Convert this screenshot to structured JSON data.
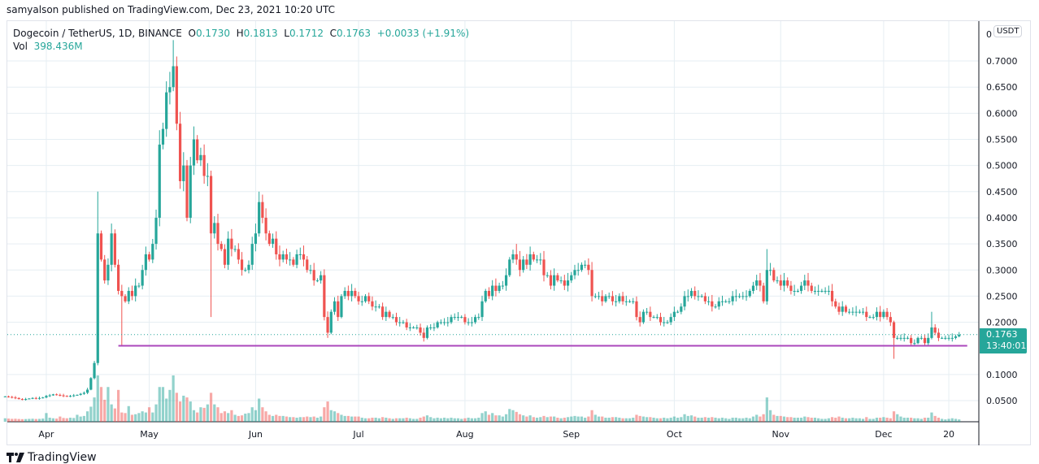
{
  "publish_line": "samyalson published on TradingView.com, Dec 23, 2021 10:20 UTC",
  "legend": {
    "symbol": "Dogecoin / TetherUS, 1D, BINANCE",
    "o_label": "O",
    "o": "0.1730",
    "h_label": "H",
    "h": "0.1813",
    "l_label": "L",
    "l": "0.1712",
    "c_label": "C",
    "c": "0.1763",
    "change": "+0.0033 (+1.91%)",
    "vol_label": "Vol",
    "vol": "398.436M"
  },
  "price_axis": {
    "currency": "USDT",
    "top_label": "0",
    "ticks": [
      "0.7000",
      "0.6500",
      "0.6000",
      "0.5500",
      "0.5000",
      "0.4500",
      "0.4000",
      "0.3500",
      "0.3000",
      "0.2500",
      "0.2000",
      "0.1000",
      "0.0500"
    ],
    "last_price": "0.1763",
    "countdown": "13:40:01"
  },
  "time_axis": {
    "ticks": [
      "Apr",
      "May",
      "Jun",
      "Jul",
      "Aug",
      "Sep",
      "Oct",
      "Nov",
      "Dec",
      "20"
    ]
  },
  "footer": {
    "brand": "TradingView"
  },
  "colors": {
    "up": "#26a69a",
    "down": "#ef5350",
    "support_line": "#ab47bc",
    "grid": "#e6eef3"
  },
  "chart_data": {
    "type": "candlestick",
    "symbol": "DOGE/USDT",
    "interval": "1D",
    "date_range": [
      "2021-03-20",
      "2021-12-23"
    ],
    "ylim": [
      0,
      0.75
    ],
    "grid": true,
    "closes": [
      0.058,
      0.057,
      0.056,
      0.055,
      0.053,
      0.052,
      0.053,
      0.054,
      0.055,
      0.054,
      0.055,
      0.056,
      0.059,
      0.06,
      0.062,
      0.061,
      0.06,
      0.059,
      0.058,
      0.059,
      0.06,
      0.061,
      0.063,
      0.065,
      0.071,
      0.093,
      0.122,
      0.37,
      0.32,
      0.28,
      0.31,
      0.37,
      0.31,
      0.26,
      0.25,
      0.24,
      0.26,
      0.25,
      0.27,
      0.27,
      0.3,
      0.33,
      0.32,
      0.35,
      0.4,
      0.54,
      0.57,
      0.64,
      0.65,
      0.69,
      0.58,
      0.47,
      0.5,
      0.4,
      0.5,
      0.55,
      0.51,
      0.52,
      0.48,
      0.48,
      0.37,
      0.39,
      0.35,
      0.34,
      0.31,
      0.36,
      0.34,
      0.34,
      0.32,
      0.3,
      0.3,
      0.31,
      0.35,
      0.37,
      0.43,
      0.4,
      0.37,
      0.35,
      0.36,
      0.33,
      0.32,
      0.33,
      0.32,
      0.32,
      0.31,
      0.33,
      0.33,
      0.32,
      0.3,
      0.3,
      0.28,
      0.28,
      0.29,
      0.21,
      0.18,
      0.22,
      0.24,
      0.21,
      0.25,
      0.26,
      0.25,
      0.26,
      0.25,
      0.24,
      0.24,
      0.25,
      0.24,
      0.23,
      0.23,
      0.23,
      0.21,
      0.22,
      0.21,
      0.21,
      0.2,
      0.2,
      0.2,
      0.19,
      0.19,
      0.19,
      0.19,
      0.18,
      0.17,
      0.19,
      0.19,
      0.19,
      0.2,
      0.2,
      0.2,
      0.2,
      0.21,
      0.21,
      0.21,
      0.21,
      0.2,
      0.2,
      0.2,
      0.21,
      0.21,
      0.24,
      0.26,
      0.25,
      0.27,
      0.26,
      0.27,
      0.27,
      0.29,
      0.32,
      0.33,
      0.32,
      0.3,
      0.32,
      0.31,
      0.33,
      0.32,
      0.32,
      0.32,
      0.29,
      0.29,
      0.27,
      0.29,
      0.28,
      0.28,
      0.27,
      0.28,
      0.29,
      0.3,
      0.3,
      0.31,
      0.31,
      0.3,
      0.25,
      0.25,
      0.25,
      0.24,
      0.25,
      0.25,
      0.24,
      0.24,
      0.25,
      0.24,
      0.24,
      0.24,
      0.24,
      0.21,
      0.2,
      0.22,
      0.22,
      0.21,
      0.21,
      0.21,
      0.2,
      0.2,
      0.2,
      0.21,
      0.22,
      0.22,
      0.23,
      0.25,
      0.25,
      0.26,
      0.25,
      0.25,
      0.25,
      0.24,
      0.24,
      0.23,
      0.23,
      0.24,
      0.24,
      0.24,
      0.24,
      0.25,
      0.25,
      0.25,
      0.25,
      0.25,
      0.26,
      0.27,
      0.28,
      0.27,
      0.24,
      0.3,
      0.3,
      0.28,
      0.28,
      0.27,
      0.28,
      0.27,
      0.26,
      0.26,
      0.26,
      0.27,
      0.28,
      0.27,
      0.26,
      0.26,
      0.26,
      0.26,
      0.26,
      0.26,
      0.24,
      0.23,
      0.22,
      0.23,
      0.22,
      0.22,
      0.22,
      0.22,
      0.22,
      0.22,
      0.21,
      0.21,
      0.21,
      0.22,
      0.21,
      0.22,
      0.21,
      0.2,
      0.17,
      0.17,
      0.17,
      0.17,
      0.17,
      0.16,
      0.16,
      0.17,
      0.17,
      0.16,
      0.17,
      0.19,
      0.18,
      0.17,
      0.17,
      0.17,
      0.17,
      0.17,
      0.173,
      0.1763
    ],
    "highs": {
      "2021-04-16": 0.45,
      "2021-05-08": 0.74,
      "2021-06-02": 0.45,
      "2021-08-16": 0.35,
      "2021-10-28": 0.34,
      "2021-12-15": 0.22,
      "2021-12-23": 0.1813
    },
    "lows": {
      "2021-04-23": 0.155,
      "2021-05-19": 0.21,
      "2021-06-22": 0.17,
      "2021-12-04": 0.13,
      "2021-12-23": 0.1712
    },
    "volumes_m": [
      600,
      550,
      500,
      520,
      480,
      450,
      470,
      500,
      520,
      480,
      500,
      550,
      1500,
      700,
      600,
      550,
      900,
      650,
      600,
      700,
      650,
      1200,
      900,
      1000,
      1800,
      2600,
      4200,
      8000,
      6000,
      3800,
      6000,
      3000,
      2300,
      5500,
      1600,
      1500,
      2700,
      1200,
      1300,
      1500,
      1800,
      1600,
      2500,
      1600,
      3000,
      6000,
      6000,
      4000,
      5500,
      8000,
      5000,
      3500,
      4500,
      4200,
      3500,
      2000,
      1600,
      2500,
      2400,
      3000,
      5000,
      3000,
      2500,
      1500,
      1800,
      1500,
      2000,
      1200,
      1000,
      1100,
      1400,
      1500,
      2500,
      2000,
      4000,
      2500,
      1800,
      1200,
      1000,
      1200,
      1000,
      1000,
      900,
      800,
      800,
      700,
      800,
      800,
      900,
      800,
      900,
      700,
      900,
      2500,
      3500,
      2000,
      1800,
      1500,
      1200,
      1000,
      1000,
      900,
      900,
      900,
      700,
      600,
      600,
      700,
      700,
      600,
      800,
      700,
      600,
      500,
      600,
      600,
      600,
      700,
      600,
      500,
      500,
      700,
      900,
      1100,
      800,
      600,
      700,
      600,
      700,
      600,
      700,
      600,
      600,
      500,
      600,
      700,
      600,
      600,
      700,
      1500,
      1800,
      1200,
      1500,
      1100,
      1100,
      900,
      1300,
      2200,
      2000,
      1700,
      1300,
      1100,
      900,
      1100,
      800,
      700,
      800,
      1000,
      800,
      900,
      900,
      700,
      600,
      700,
      800,
      900,
      1000,
      900,
      900,
      700,
      900,
      2000,
      1200,
      900,
      900,
      700,
      700,
      800,
      800,
      700,
      600,
      600,
      600,
      700,
      1200,
      1000,
      900,
      800,
      800,
      700,
      600,
      600,
      700,
      600,
      700,
      900,
      700,
      800,
      1300,
      1000,
      1100,
      900,
      700,
      700,
      800,
      700,
      800,
      700,
      600,
      700,
      600,
      500,
      700,
      700,
      600,
      600,
      700,
      600,
      900,
      1200,
      900,
      1300,
      4200,
      2000,
      1200,
      1000,
      1000,
      900,
      800,
      800,
      700,
      700,
      700,
      900,
      800,
      700,
      700,
      600,
      500,
      500,
      600,
      800,
      700,
      900,
      700,
      600,
      600,
      700,
      600,
      600,
      500,
      800,
      500,
      500,
      700,
      700,
      800,
      700,
      600,
      1800,
      1300,
      900,
      700,
      700,
      700,
      600,
      600,
      500,
      700,
      700,
      1600,
      1000,
      700,
      500,
      400,
      500,
      600,
      500,
      398.436
    ],
    "support_line": {
      "price": 0.155,
      "from": "2021-04-22",
      "to": "2021-12-23"
    },
    "last_price_line": 0.1763
  }
}
